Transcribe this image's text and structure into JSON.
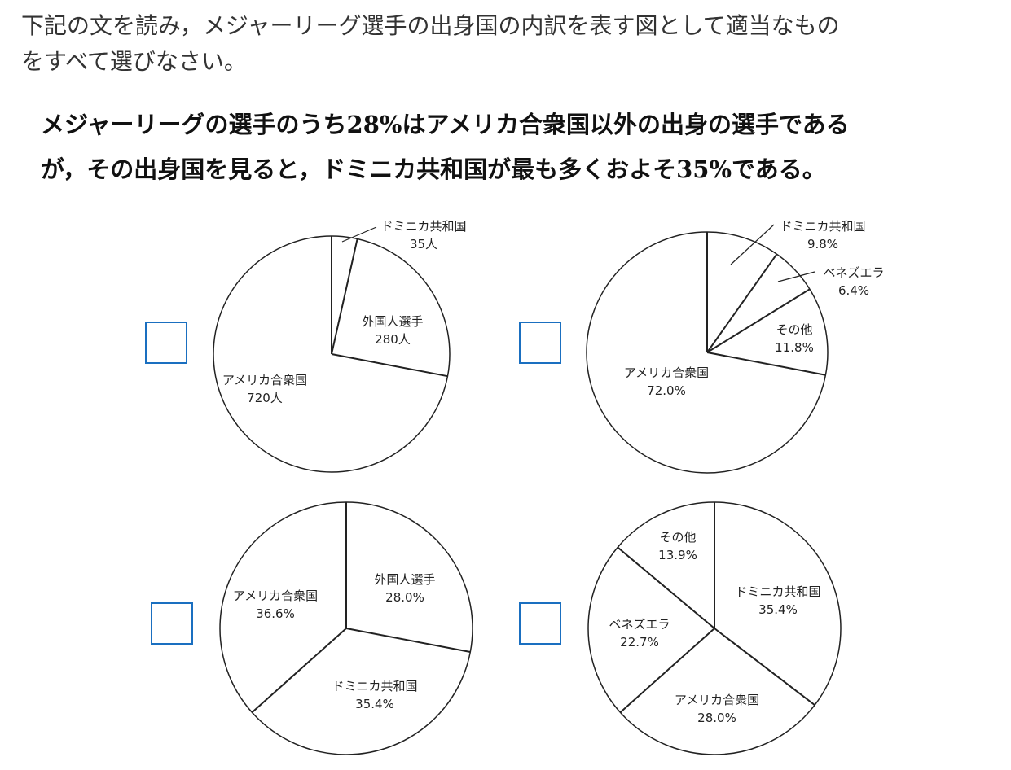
{
  "question": {
    "line1": "下記の文を読み，メジャーリーグ選手の出身国の内訳を表す図として適当なもの",
    "line2": "をすべて選びなさい。"
  },
  "statement": {
    "line1": "メジャーリーグの選手のうち28%はアメリカ合衆国以外の出身の選手である",
    "line2": "が，その出身国を見ると，ドミニカ共和国が最も多くおよそ35%である。"
  },
  "colors": {
    "checkbox_border": "#1a6fc0",
    "line": "#222222"
  },
  "chart_data": [
    {
      "type": "pie",
      "start": "12 o'clock, clockwise",
      "slices": [
        {
          "label": "外国人選手",
          "value_text": "280人",
          "value": 280,
          "sub_slices": [
            {
              "label": "ドミニカ共和国",
              "value_text": "35人",
              "value": 35
            }
          ]
        },
        {
          "label": "アメリカ合衆国",
          "value_text": "720人",
          "value": 720
        }
      ]
    },
    {
      "type": "pie",
      "start": "12 o'clock, clockwise",
      "slices": [
        {
          "label": "ドミニカ共和国",
          "value_text": "9.8%",
          "value": 9.8
        },
        {
          "label": "ベネズエラ",
          "value_text": "6.4%",
          "value": 6.4
        },
        {
          "label": "その他",
          "value_text": "11.8%",
          "value": 11.8
        },
        {
          "label": "アメリカ合衆国",
          "value_text": "72.0%",
          "value": 72.0
        }
      ]
    },
    {
      "type": "pie",
      "start": "12 o'clock, clockwise",
      "slices": [
        {
          "label": "外国人選手",
          "value_text": "28.0%",
          "value": 28.0
        },
        {
          "label": "ドミニカ共和国",
          "value_text": "35.4%",
          "value": 35.4
        },
        {
          "label": "アメリカ合衆国",
          "value_text": "36.6%",
          "value": 36.6
        }
      ]
    },
    {
      "type": "pie",
      "start": "12 o'clock, clockwise",
      "slices": [
        {
          "label": "ドミニカ共和国",
          "value_text": "35.4%",
          "value": 35.4
        },
        {
          "label": "アメリカ合衆国",
          "value_text": "28.0%",
          "value": 28.0
        },
        {
          "label": "ベネズエラ",
          "value_text": "22.7%",
          "value": 22.7
        },
        {
          "label": "その他",
          "value_text": "13.9%",
          "value": 13.9
        }
      ]
    }
  ]
}
